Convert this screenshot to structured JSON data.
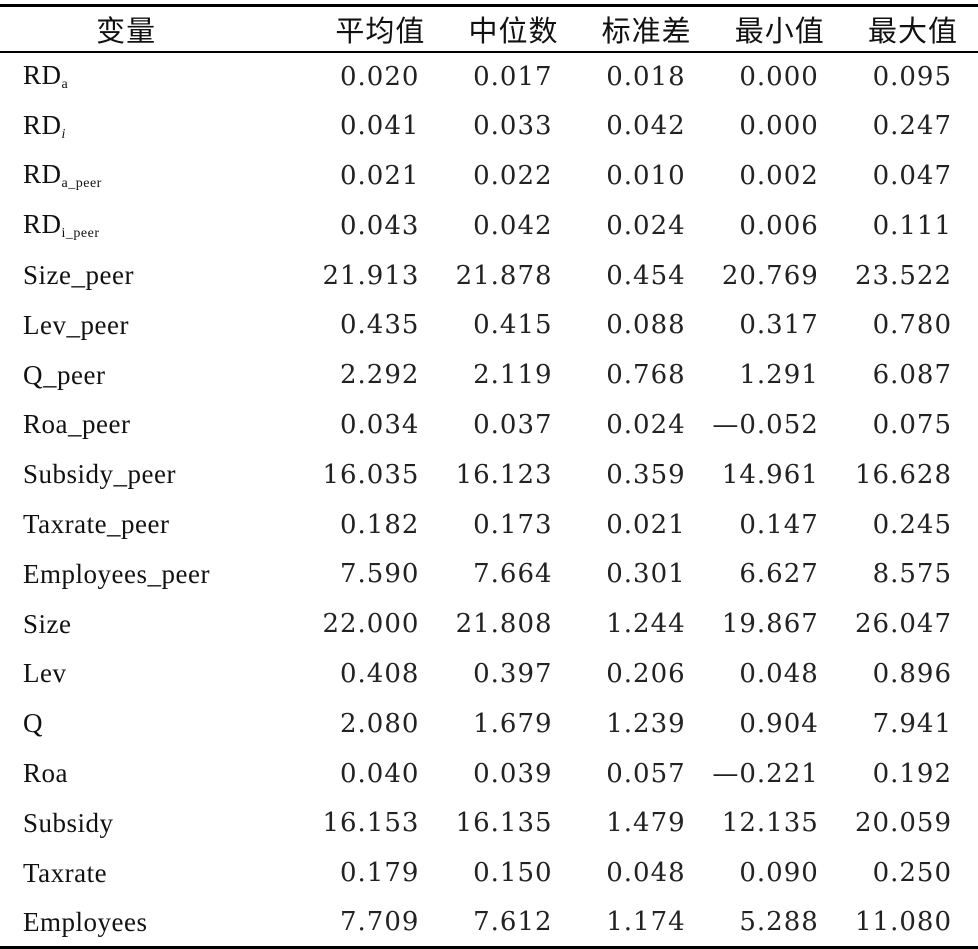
{
  "table": {
    "headers": [
      "变量",
      "平均值",
      "中位数",
      "标准差",
      "最小值",
      "最大值"
    ],
    "rows": [
      {
        "base": "RD",
        "sub": "a",
        "sub_italic": false,
        "values": [
          "0.020",
          "0.017",
          "0.018",
          "0.000",
          "0.095"
        ]
      },
      {
        "base": "RD",
        "sub": "i",
        "sub_italic": true,
        "values": [
          "0.041",
          "0.033",
          "0.042",
          "0.000",
          "0.247"
        ]
      },
      {
        "base": "RD",
        "sub": "a_peer",
        "sub_italic": false,
        "values": [
          "0.021",
          "0.022",
          "0.010",
          "0.002",
          "0.047"
        ]
      },
      {
        "base": "RD",
        "sub": "i_peer",
        "sub_italic": false,
        "values": [
          "0.043",
          "0.042",
          "0.024",
          "0.006",
          "0.111"
        ]
      },
      {
        "base": "Size_peer",
        "sub": "",
        "sub_italic": false,
        "values": [
          "21.913",
          "21.878",
          "0.454",
          "20.769",
          "23.522"
        ]
      },
      {
        "base": "Lev_peer",
        "sub": "",
        "sub_italic": false,
        "values": [
          "0.435",
          "0.415",
          "0.088",
          "0.317",
          "0.780"
        ]
      },
      {
        "base": "Q_peer",
        "sub": "",
        "sub_italic": false,
        "values": [
          "2.292",
          "2.119",
          "0.768",
          "1.291",
          "6.087"
        ]
      },
      {
        "base": "Roa_peer",
        "sub": "",
        "sub_italic": false,
        "values": [
          "0.034",
          "0.037",
          "0.024",
          "—0.052",
          "0.075"
        ]
      },
      {
        "base": "Subsidy_peer",
        "sub": "",
        "sub_italic": false,
        "values": [
          "16.035",
          "16.123",
          "0.359",
          "14.961",
          "16.628"
        ]
      },
      {
        "base": "Taxrate_peer",
        "sub": "",
        "sub_italic": false,
        "values": [
          "0.182",
          "0.173",
          "0.021",
          "0.147",
          "0.245"
        ]
      },
      {
        "base": "Employees_peer",
        "sub": "",
        "sub_italic": false,
        "values": [
          "7.590",
          "7.664",
          "0.301",
          "6.627",
          "8.575"
        ]
      },
      {
        "base": "Size",
        "sub": "",
        "sub_italic": false,
        "values": [
          "22.000",
          "21.808",
          "1.244",
          "19.867",
          "26.047"
        ]
      },
      {
        "base": "Lev",
        "sub": "",
        "sub_italic": false,
        "values": [
          "0.408",
          "0.397",
          "0.206",
          "0.048",
          "0.896"
        ]
      },
      {
        "base": "Q",
        "sub": "",
        "sub_italic": false,
        "values": [
          "2.080",
          "1.679",
          "1.239",
          "0.904",
          "7.941"
        ]
      },
      {
        "base": "Roa",
        "sub": "",
        "sub_italic": false,
        "values": [
          "0.040",
          "0.039",
          "0.057",
          "—0.221",
          "0.192"
        ]
      },
      {
        "base": "Subsidy",
        "sub": "",
        "sub_italic": false,
        "values": [
          "16.153",
          "16.135",
          "1.479",
          "12.135",
          "20.059"
        ]
      },
      {
        "base": "Taxrate",
        "sub": "",
        "sub_italic": false,
        "values": [
          "0.179",
          "0.150",
          "0.048",
          "0.090",
          "0.250"
        ]
      },
      {
        "base": "Employees",
        "sub": "",
        "sub_italic": false,
        "values": [
          "7.709",
          "7.612",
          "1.174",
          "5.288",
          "11.080"
        ]
      }
    ]
  }
}
